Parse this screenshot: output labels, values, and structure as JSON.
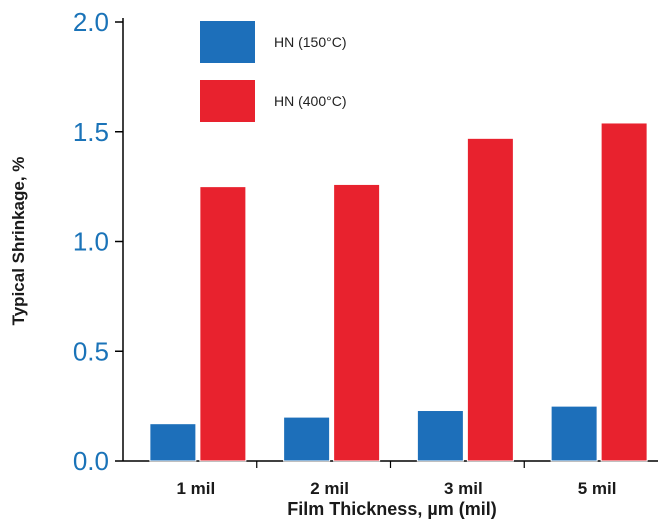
{
  "chart_data": {
    "type": "bar",
    "xlabel": "Film Thickness, µm (mil)",
    "ylabel": "Typical Shrinkage, %",
    "categories": [
      "1 mil",
      "2 mil",
      "3 mil",
      "5 mil"
    ],
    "ylim": [
      0,
      2.0
    ],
    "yticks": [
      "0.0",
      "0.5",
      "1.0",
      "1.5",
      "2.0"
    ],
    "grid": false,
    "legend_position": "top-left",
    "series": [
      {
        "name": "HN (150°C)",
        "color": "#1d6fba",
        "values": [
          0.17,
          0.2,
          0.23,
          0.25
        ]
      },
      {
        "name": "HN (400°C)",
        "color": "#e8222e",
        "values": [
          1.25,
          1.26,
          1.47,
          1.54
        ]
      }
    ],
    "colors": {
      "axis": "#000000",
      "tick_labels": "#1a73b8",
      "bar_outline": "#ffffff"
    }
  }
}
